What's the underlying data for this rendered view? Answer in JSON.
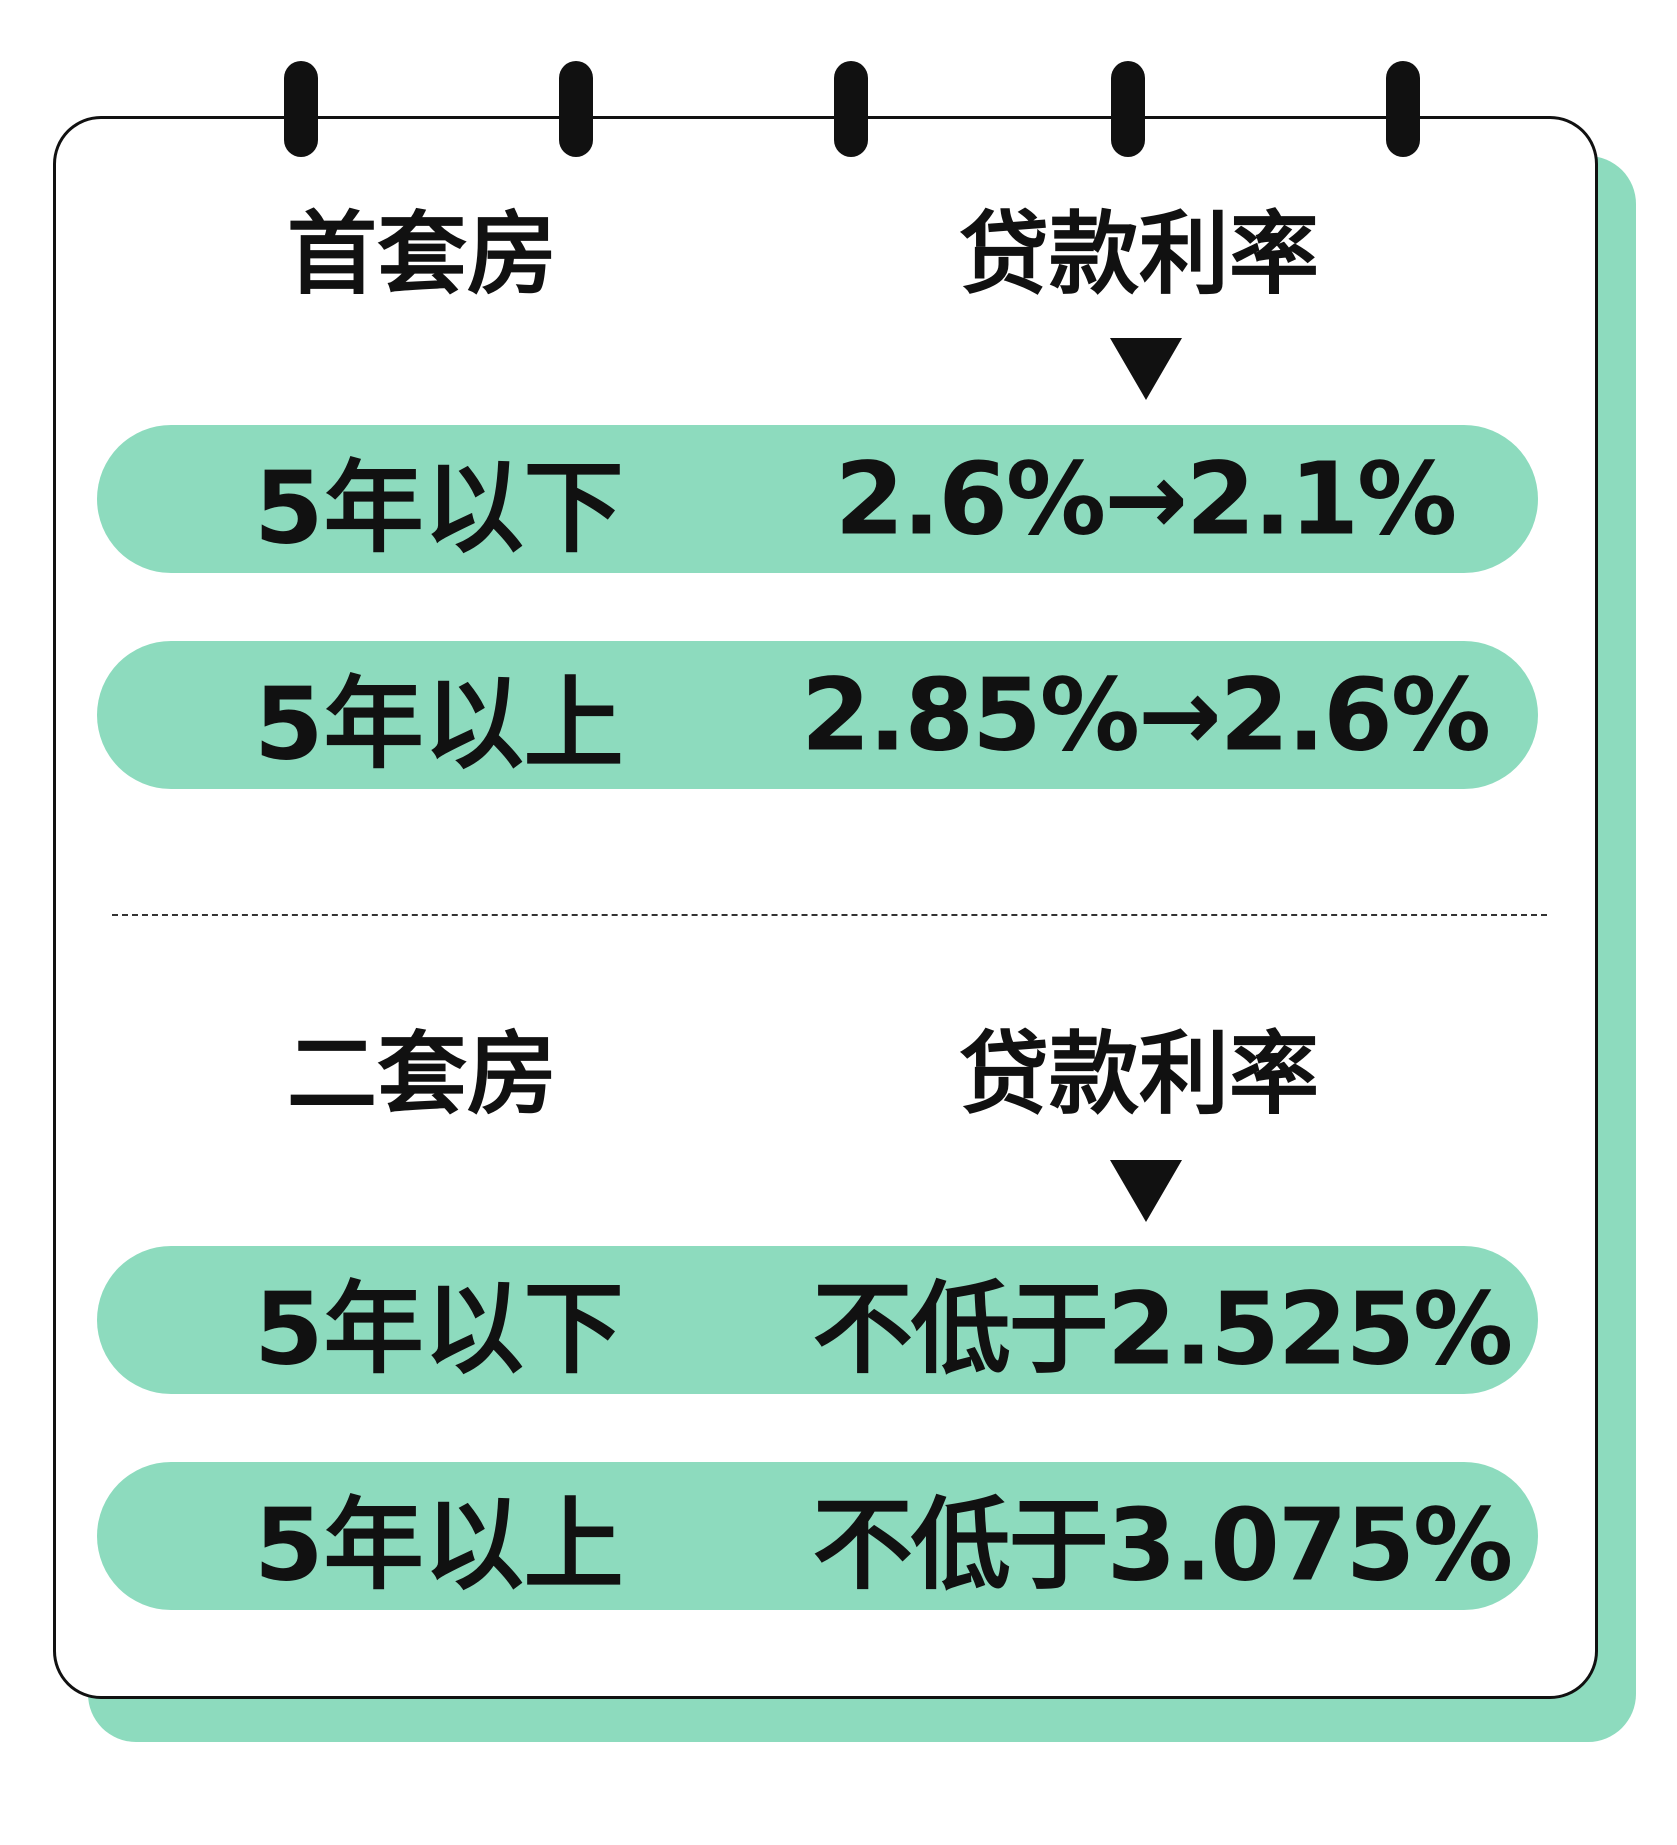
{
  "colors": {
    "accent": "#8ddbbe",
    "ink": "#111111"
  },
  "first_home": {
    "title": "首套房",
    "rate_header": "贷款利率",
    "rows": [
      {
        "term": "5年以下",
        "rate": "2.6%→2.1%"
      },
      {
        "term": "5年以上",
        "rate": "2.85%→2.6%"
      }
    ]
  },
  "second_home": {
    "title": "二套房",
    "rate_header": "贷款利率",
    "rows": [
      {
        "term": "5年以下",
        "rate": "不低于2.525%"
      },
      {
        "term": "5年以上",
        "rate": "不低于3.075%"
      }
    ]
  }
}
